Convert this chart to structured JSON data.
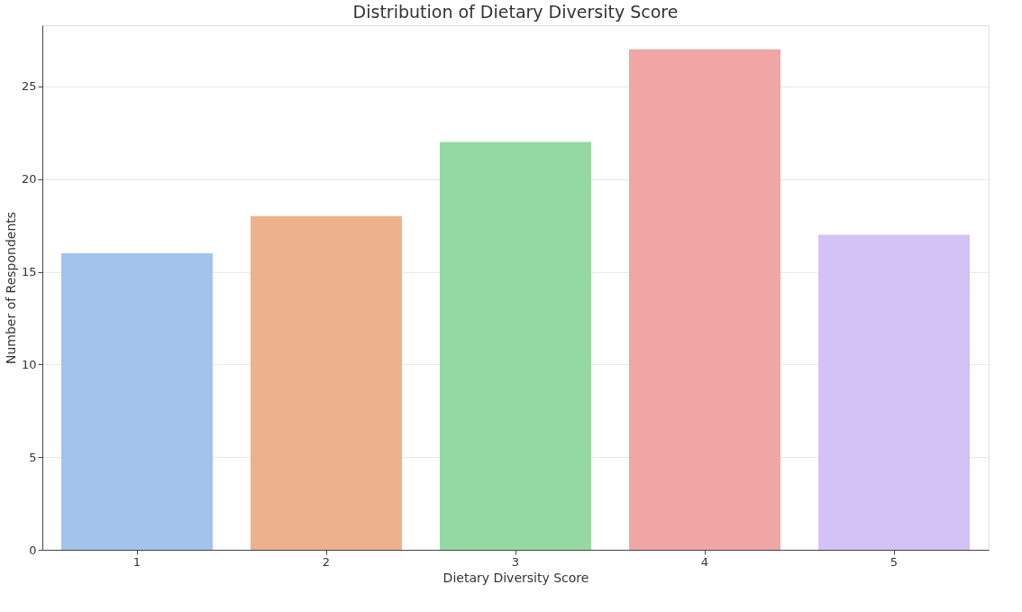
{
  "chart_data": {
    "type": "bar",
    "title": "Distribution of Dietary Diversity Score",
    "xlabel": "Dietary Diversity Score",
    "ylabel": "Number of Respondents",
    "categories": [
      "1",
      "2",
      "3",
      "4",
      "5"
    ],
    "values": [
      16,
      18,
      22,
      27,
      17
    ],
    "colors": [
      "#a4c3ec",
      "#edb28c",
      "#94d9a4",
      "#f0a6a4",
      "#d3c2f5"
    ],
    "ylim": [
      0,
      28.3
    ],
    "yticks": [
      0,
      5,
      10,
      15,
      20,
      25
    ],
    "grid": "y"
  }
}
